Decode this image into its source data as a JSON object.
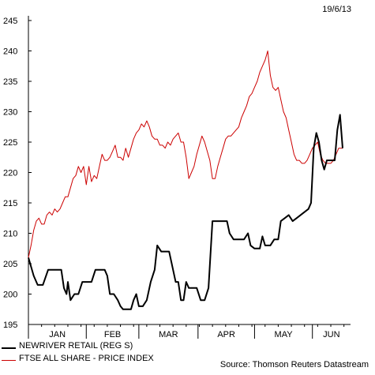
{
  "date_stamp": "19/6/13",
  "source": "Source: Thomson Reuters Datastream",
  "chart_data": {
    "type": "line",
    "y_ticks": [
      195,
      200,
      205,
      210,
      215,
      220,
      225,
      230,
      235,
      240,
      245
    ],
    "ylim": [
      195,
      245
    ],
    "xlim": [
      0,
      24.5
    ],
    "x_unit": "weeks since start of Jan 2013",
    "months": [
      {
        "label": "JAN",
        "start": 0,
        "end": 4.4
      },
      {
        "label": "FEB",
        "start": 4.4,
        "end": 8.4
      },
      {
        "label": "MAR",
        "start": 8.4,
        "end": 12.9
      },
      {
        "label": "APR",
        "start": 12.9,
        "end": 17.2
      },
      {
        "label": "MAY",
        "start": 17.2,
        "end": 21.6
      },
      {
        "label": "JUN",
        "start": 21.6,
        "end": 24.5
      }
    ],
    "series": [
      {
        "name": "NEWRIVER RETAIL (REG S)",
        "color": "#000000",
        "points": [
          [
            0,
            206
          ],
          [
            0.4,
            203
          ],
          [
            0.7,
            201.5
          ],
          [
            1.1,
            201.5
          ],
          [
            1.5,
            204
          ],
          [
            1.9,
            204
          ],
          [
            2.2,
            204
          ],
          [
            2.5,
            204
          ],
          [
            2.7,
            201
          ],
          [
            2.9,
            200
          ],
          [
            3.0,
            202
          ],
          [
            3.2,
            199
          ],
          [
            3.5,
            200
          ],
          [
            3.8,
            200
          ],
          [
            4.1,
            202
          ],
          [
            4.5,
            202
          ],
          [
            4.8,
            202
          ],
          [
            5.1,
            204
          ],
          [
            5.5,
            204
          ],
          [
            5.8,
            204
          ],
          [
            6.0,
            203
          ],
          [
            6.2,
            200
          ],
          [
            6.5,
            200
          ],
          [
            6.8,
            199
          ],
          [
            7.0,
            198
          ],
          [
            7.2,
            197.5
          ],
          [
            7.5,
            197.5
          ],
          [
            7.8,
            197.5
          ],
          [
            8.0,
            199
          ],
          [
            8.2,
            200
          ],
          [
            8.4,
            198
          ],
          [
            8.7,
            198
          ],
          [
            9.0,
            199
          ],
          [
            9.3,
            202
          ],
          [
            9.6,
            204
          ],
          [
            9.8,
            208
          ],
          [
            10.1,
            207
          ],
          [
            10.4,
            207
          ],
          [
            10.7,
            207
          ],
          [
            11.0,
            204
          ],
          [
            11.2,
            202
          ],
          [
            11.4,
            202
          ],
          [
            11.6,
            199
          ],
          [
            11.8,
            199
          ],
          [
            12.0,
            202
          ],
          [
            12.2,
            201
          ],
          [
            12.5,
            201
          ],
          [
            12.8,
            201
          ],
          [
            13.1,
            199
          ],
          [
            13.4,
            199
          ],
          [
            13.7,
            201
          ],
          [
            14.0,
            212
          ],
          [
            14.4,
            212
          ],
          [
            14.8,
            212
          ],
          [
            15.1,
            212
          ],
          [
            15.3,
            210
          ],
          [
            15.6,
            209
          ],
          [
            16.0,
            209
          ],
          [
            16.4,
            209
          ],
          [
            16.7,
            210
          ],
          [
            16.9,
            208
          ],
          [
            17.2,
            207.5
          ],
          [
            17.6,
            207.5
          ],
          [
            17.8,
            209.5
          ],
          [
            18.0,
            208
          ],
          [
            18.4,
            208
          ],
          [
            18.7,
            209
          ],
          [
            19.0,
            209
          ],
          [
            19.2,
            212
          ],
          [
            19.5,
            212.5
          ],
          [
            19.8,
            213
          ],
          [
            20.1,
            212
          ],
          [
            20.4,
            212.5
          ],
          [
            20.7,
            213
          ],
          [
            21.0,
            213.5
          ],
          [
            21.3,
            214
          ],
          [
            21.5,
            215
          ],
          [
            21.7,
            224
          ],
          [
            21.9,
            226.5
          ],
          [
            22.1,
            225
          ],
          [
            22.3,
            222
          ],
          [
            22.5,
            220.5
          ],
          [
            22.7,
            222
          ],
          [
            23.0,
            222
          ],
          [
            23.3,
            222
          ],
          [
            23.5,
            227
          ],
          [
            23.7,
            229.5
          ],
          [
            23.9,
            224
          ]
        ]
      },
      {
        "name": "FTSE ALL SHARE - PRICE INDEX",
        "color": "#cc0000",
        "points": [
          [
            0,
            206
          ],
          [
            0.2,
            208
          ],
          [
            0.4,
            210.5
          ],
          [
            0.6,
            212
          ],
          [
            0.8,
            212.5
          ],
          [
            1.0,
            211.5
          ],
          [
            1.2,
            211.5
          ],
          [
            1.4,
            213
          ],
          [
            1.6,
            213.5
          ],
          [
            1.8,
            213
          ],
          [
            2.0,
            214
          ],
          [
            2.2,
            213.5
          ],
          [
            2.4,
            214
          ],
          [
            2.6,
            215
          ],
          [
            2.8,
            216
          ],
          [
            3.0,
            216
          ],
          [
            3.2,
            217.5
          ],
          [
            3.4,
            219
          ],
          [
            3.6,
            219.5
          ],
          [
            3.8,
            221
          ],
          [
            4.0,
            220
          ],
          [
            4.2,
            221
          ],
          [
            4.4,
            218
          ],
          [
            4.6,
            221
          ],
          [
            4.8,
            218.5
          ],
          [
            5.0,
            219.5
          ],
          [
            5.2,
            219
          ],
          [
            5.4,
            221
          ],
          [
            5.6,
            223
          ],
          [
            5.8,
            222
          ],
          [
            6.0,
            222
          ],
          [
            6.2,
            222.5
          ],
          [
            6.4,
            223.5
          ],
          [
            6.6,
            224.5
          ],
          [
            6.8,
            222.5
          ],
          [
            7.0,
            222.5
          ],
          [
            7.2,
            222
          ],
          [
            7.4,
            224
          ],
          [
            7.6,
            222.5
          ],
          [
            7.8,
            224
          ],
          [
            8.0,
            225.5
          ],
          [
            8.2,
            226.5
          ],
          [
            8.4,
            227
          ],
          [
            8.6,
            228
          ],
          [
            8.8,
            227.5
          ],
          [
            9.0,
            228.5
          ],
          [
            9.2,
            227.5
          ],
          [
            9.4,
            226
          ],
          [
            9.6,
            225.5
          ],
          [
            9.8,
            225.5
          ],
          [
            10.0,
            224.5
          ],
          [
            10.2,
            224.5
          ],
          [
            10.4,
            224
          ],
          [
            10.6,
            225
          ],
          [
            10.8,
            224.5
          ],
          [
            11.0,
            225.5
          ],
          [
            11.2,
            226
          ],
          [
            11.4,
            226.5
          ],
          [
            11.6,
            225
          ],
          [
            11.8,
            225
          ],
          [
            12.0,
            222.5
          ],
          [
            12.2,
            219
          ],
          [
            12.4,
            220
          ],
          [
            12.6,
            221
          ],
          [
            12.8,
            223
          ],
          [
            13.0,
            224.5
          ],
          [
            13.2,
            226
          ],
          [
            13.4,
            225
          ],
          [
            13.6,
            223.5
          ],
          [
            13.8,
            222
          ],
          [
            14.0,
            219
          ],
          [
            14.2,
            219
          ],
          [
            14.4,
            221
          ],
          [
            14.6,
            222.5
          ],
          [
            14.8,
            224
          ],
          [
            15.0,
            225.5
          ],
          [
            15.2,
            226
          ],
          [
            15.4,
            226
          ],
          [
            15.6,
            226.5
          ],
          [
            15.8,
            227
          ],
          [
            16.0,
            227.5
          ],
          [
            16.2,
            229
          ],
          [
            16.4,
            230
          ],
          [
            16.6,
            231
          ],
          [
            16.8,
            232.5
          ],
          [
            17.0,
            233
          ],
          [
            17.2,
            234
          ],
          [
            17.4,
            235
          ],
          [
            17.6,
            236.5
          ],
          [
            17.8,
            237.5
          ],
          [
            18.0,
            238.5
          ],
          [
            18.2,
            240
          ],
          [
            18.4,
            236
          ],
          [
            18.6,
            234
          ],
          [
            18.8,
            233.5
          ],
          [
            19.0,
            234
          ],
          [
            19.2,
            232
          ],
          [
            19.4,
            230
          ],
          [
            19.6,
            229
          ],
          [
            19.8,
            227
          ],
          [
            20.0,
            225
          ],
          [
            20.2,
            223
          ],
          [
            20.4,
            222
          ],
          [
            20.6,
            222
          ],
          [
            20.8,
            221.5
          ],
          [
            21.0,
            221.5
          ],
          [
            21.2,
            222
          ],
          [
            21.4,
            223
          ],
          [
            21.6,
            224
          ],
          [
            21.8,
            224.5
          ],
          [
            22.0,
            225
          ],
          [
            22.2,
            223
          ],
          [
            22.4,
            222
          ],
          [
            22.6,
            221.5
          ],
          [
            22.8,
            221.5
          ],
          [
            23.0,
            221.5
          ],
          [
            23.2,
            222
          ],
          [
            23.4,
            223
          ],
          [
            23.6,
            224
          ],
          [
            23.9,
            224
          ]
        ]
      }
    ]
  }
}
